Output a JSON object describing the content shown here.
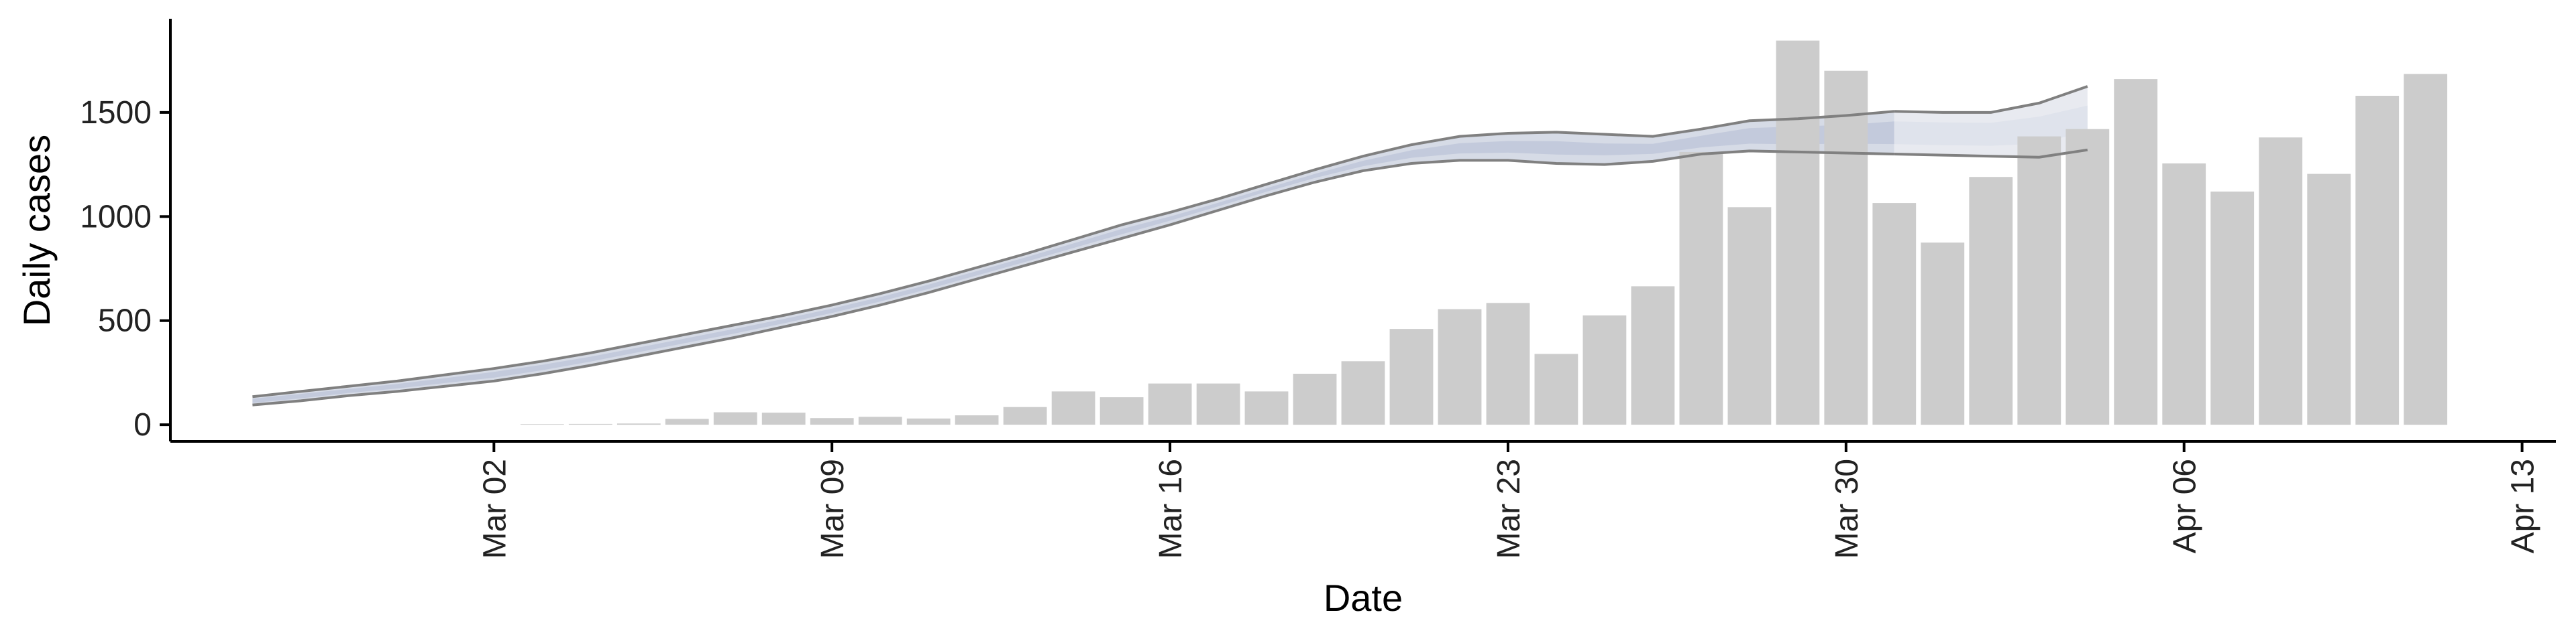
{
  "chart_data": {
    "type": "bar",
    "xlabel": "Date",
    "ylabel": "Daily cases",
    "ylim": [
      -80,
      1950
    ],
    "y_ticks": [
      0,
      500,
      1000,
      1500
    ],
    "x_ticks": [
      {
        "label": "Mar 02",
        "day": 2
      },
      {
        "label": "Mar 09",
        "day": 9
      },
      {
        "label": "Mar 16",
        "day": 16
      },
      {
        "label": "Mar 23",
        "day": 23
      },
      {
        "label": "Mar 30",
        "day": 30
      },
      {
        "label": "Apr 06",
        "day": 37
      },
      {
        "label": "Apr 13",
        "day": 44
      }
    ],
    "xlim_days": [
      -4.7,
      44.7
    ],
    "bars": {
      "start_day": 3,
      "values": [
        3,
        4,
        6,
        28,
        60,
        58,
        32,
        38,
        30,
        45,
        85,
        160,
        132,
        198,
        198,
        160,
        245,
        305,
        460,
        555,
        585,
        340,
        525,
        665,
        1310,
        1045,
        1845,
        1700,
        1065,
        875,
        1190,
        1385,
        1420,
        1660,
        1255,
        1120,
        1380,
        1205,
        1580,
        1685
      ],
      "color": "#cccccc"
    },
    "estimate": {
      "start_day": -3,
      "projection_start_day": 31,
      "upper": [
        135,
        160,
        185,
        210,
        240,
        270,
        305,
        345,
        390,
        435,
        480,
        525,
        575,
        630,
        690,
        755,
        820,
        890,
        960,
        1020,
        1085,
        1155,
        1225,
        1290,
        1345,
        1385,
        1400,
        1405,
        1395,
        1385,
        1420,
        1460,
        1470,
        1485,
        1505,
        1500,
        1500,
        1545,
        1625
      ],
      "lower": [
        95,
        115,
        140,
        160,
        185,
        210,
        245,
        285,
        330,
        375,
        420,
        470,
        520,
        575,
        635,
        700,
        765,
        830,
        895,
        960,
        1030,
        1100,
        1165,
        1220,
        1255,
        1270,
        1270,
        1255,
        1250,
        1265,
        1300,
        1315,
        1310,
        1305,
        1300,
        1295,
        1290,
        1285,
        1320
      ],
      "inner_upper": [
        125,
        148,
        172,
        196,
        224,
        254,
        288,
        327,
        371,
        416,
        461,
        508,
        558,
        613,
        673,
        738,
        803,
        871,
        940,
        1000,
        1066,
        1136,
        1205,
        1268,
        1318,
        1352,
        1363,
        1362,
        1351,
        1349,
        1388,
        1425,
        1433,
        1440,
        1457,
        1452,
        1450,
        1480,
        1533
      ],
      "inner_lower": [
        105,
        127,
        153,
        174,
        201,
        226,
        262,
        303,
        349,
        394,
        439,
        487,
        537,
        592,
        652,
        717,
        782,
        849,
        915,
        980,
        1049,
        1119,
        1185,
        1242,
        1282,
        1303,
        1307,
        1298,
        1294,
        1301,
        1332,
        1350,
        1347,
        1350,
        1348,
        1343,
        1340,
        1350,
        1412
      ],
      "line_color": "#808080",
      "band_color": "#c3cadc"
    }
  }
}
